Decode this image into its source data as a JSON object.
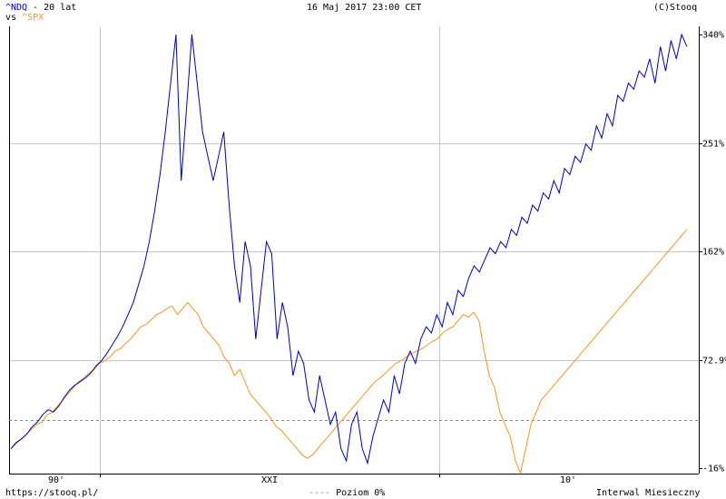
{
  "header": {
    "symbol_main": "^NDQ",
    "range_text": " - 20 lat",
    "vs_text": "vs ",
    "symbol_compare": "^SPX",
    "date_text": "16 Maj 2017 23:00 CET",
    "copyright": "(C)Stooq"
  },
  "footer": {
    "url": "https://stooq.pl/",
    "baseline_label": "Poziom 0%",
    "interval_label": "Interwal Miesieczny"
  },
  "colors": {
    "ndq": "#0000b4",
    "spx": "#ee9a1c",
    "grid": "#c8c8c8",
    "baseline": "#888888"
  },
  "chart_data": {
    "type": "line",
    "title": "",
    "xlabel": "",
    "ylabel": "",
    "period": "1997-05 to 2017-05",
    "x_tick_labels": [
      "90'",
      "XXI",
      "10'"
    ],
    "y_tick_labels": [
      "340%",
      "251%",
      "162%",
      "72.9%",
      "-16%"
    ],
    "ylim": [
      -16,
      340
    ],
    "baseline": 0,
    "grid": true,
    "legend": "top-left",
    "series": [
      {
        "name": "^NDQ",
        "values": [
          0,
          5,
          8,
          12,
          18,
          22,
          28,
          32,
          30,
          35,
          42,
          48,
          52,
          55,
          58,
          62,
          68,
          72,
          78,
          85,
          92,
          100,
          110,
          120,
          135,
          150,
          170,
          195,
          225,
          260,
          300,
          340,
          220,
          280,
          340,
          300,
          260,
          240,
          220,
          240,
          260,
          200,
          150,
          120,
          170,
          150,
          90,
          130,
          170,
          160,
          90,
          120,
          100,
          60,
          80,
          70,
          40,
          30,
          60,
          40,
          20,
          30,
          0,
          -10,
          20,
          30,
          0,
          -12,
          10,
          25,
          40,
          30,
          60,
          45,
          70,
          80,
          70,
          90,
          100,
          95,
          110,
          100,
          120,
          110,
          130,
          125,
          140,
          150,
          145,
          155,
          165,
          160,
          170,
          165,
          180,
          175,
          190,
          185,
          200,
          195,
          210,
          205,
          220,
          210,
          230,
          225,
          240,
          235,
          250,
          245,
          265,
          255,
          275,
          265,
          290,
          285,
          300,
          295,
          310,
          305,
          320,
          300,
          330,
          310,
          335,
          320,
          340,
          330
        ],
        "note": "approximate pct change"
      },
      {
        "name": "^SPX",
        "values": [
          0,
          4,
          8,
          12,
          16,
          20,
          22,
          28,
          30,
          35,
          40,
          45,
          50,
          55,
          58,
          62,
          65,
          70,
          72,
          75,
          80,
          82,
          86,
          90,
          95,
          100,
          102,
          106,
          110,
          112,
          115,
          117,
          110,
          115,
          120,
          115,
          110,
          100,
          95,
          90,
          85,
          75,
          70,
          60,
          65,
          55,
          45,
          40,
          35,
          30,
          25,
          18,
          15,
          10,
          5,
          0,
          -5,
          -8,
          -5,
          0,
          5,
          10,
          15,
          20,
          25,
          30,
          35,
          40,
          45,
          50,
          55,
          58,
          62,
          66,
          70,
          72,
          75,
          78,
          80,
          82,
          85,
          88,
          90,
          95,
          98,
          100,
          105,
          110,
          108,
          112,
          105,
          80,
          60,
          50,
          30,
          20,
          10,
          -10,
          -20,
          0,
          20,
          30,
          40,
          45,
          50,
          55,
          60,
          65,
          70,
          75,
          80,
          85,
          90,
          95,
          100,
          105,
          110,
          115,
          120,
          125,
          130,
          135,
          140,
          145,
          150,
          155,
          160,
          165,
          170,
          175,
          180
        ],
        "note": "approximate pct change"
      }
    ]
  }
}
